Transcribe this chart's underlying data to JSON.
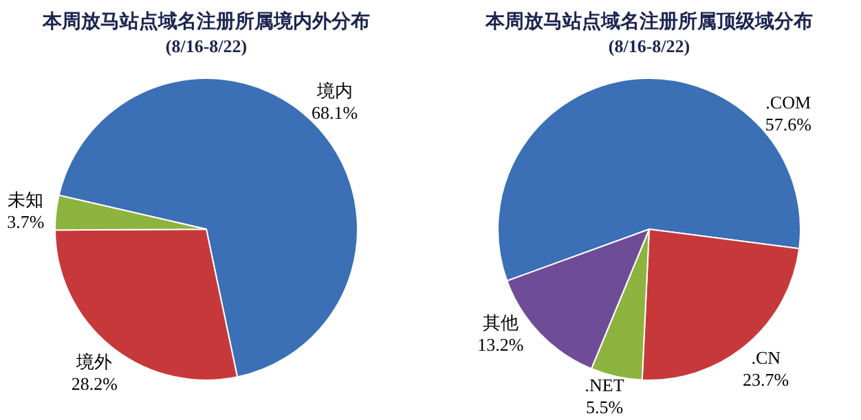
{
  "chart_data": [
    {
      "type": "pie",
      "title": "本周放马站点域名注册所属境内外分布",
      "subtitle": "(8/16-8/22)",
      "categories": [
        "境内",
        "境外",
        "未知"
      ],
      "values": [
        68.1,
        28.2,
        3.7
      ],
      "value_labels": [
        "68.1%",
        "28.2%",
        "3.7%"
      ],
      "colors": [
        "#3b6fb6",
        "#c7383a",
        "#8db43e"
      ]
    },
    {
      "type": "pie",
      "title": "本周放马站点域名注册所属顶级域分布",
      "subtitle": "(8/16-8/22)",
      "categories": [
        ".COM",
        ".CN",
        ".NET",
        "其他"
      ],
      "values": [
        57.6,
        23.7,
        5.5,
        13.2
      ],
      "value_labels": [
        "57.6%",
        "23.7%",
        "5.5%",
        "13.2%"
      ],
      "colors": [
        "#3b6fb6",
        "#c7383a",
        "#8db43e",
        "#6f4c98"
      ]
    }
  ]
}
